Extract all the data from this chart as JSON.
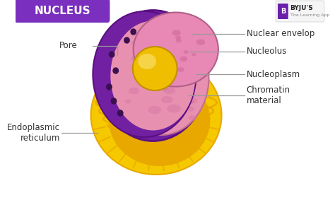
{
  "title": "NUCLEUS",
  "title_bg": "#7b2fbe",
  "title_color": "#ffffff",
  "bg_color": "#ffffff",
  "labels": {
    "pore": "Pore",
    "nuclear_envelop": "Nuclear envelop",
    "nucleolus": "Nucleolus",
    "nucleoplasm": "Nucleoplasm",
    "chromatin": "Chromatin\nmaterial",
    "endoplasmic": "Endoplasmic\nreticulum"
  },
  "colors": {
    "gold_outer": "#e8a800",
    "gold_light": "#f5c800",
    "gold_highlight": "#fde050",
    "purple_envelope": "#7020a0",
    "purple_dark": "#5a1080",
    "purple_mid": "#9040b0",
    "pink_nucleoplasm": "#e890b0",
    "pink_light": "#f0b0c8",
    "pink_cap": "#e888b5",
    "nucleolus_gold": "#f0be00",
    "nucleolus_light": "#f8dc60",
    "pore_dark": "#3a1050",
    "line_color": "#999999",
    "label_color": "#333333"
  },
  "byju_bg": "#f8f8f8",
  "byju_purple": "#6a1faa",
  "byju_text": "BYJU'S",
  "byju_sub": "The Learning App"
}
